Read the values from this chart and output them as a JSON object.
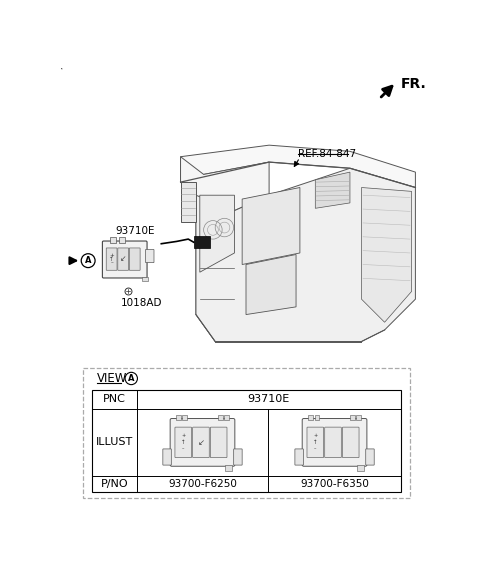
{
  "bg_color": "#ffffff",
  "fr_label": "FR.",
  "ref_label": "REF.84-847",
  "part_label_switch": "93710E",
  "part_label_screw": "1018AD",
  "view_label": "VIEW",
  "table_pnc": "PNC",
  "table_pnc_value": "93710E",
  "table_illust": "ILLUST",
  "table_pno": "P/NO",
  "table_pno1": "93700-F6250",
  "table_pno2": "93700-F6350",
  "text_color": "#000000",
  "dash_color": "#aaaaaa",
  "gray1": "#555555",
  "gray2": "#888888",
  "gray3": "#cccccc"
}
